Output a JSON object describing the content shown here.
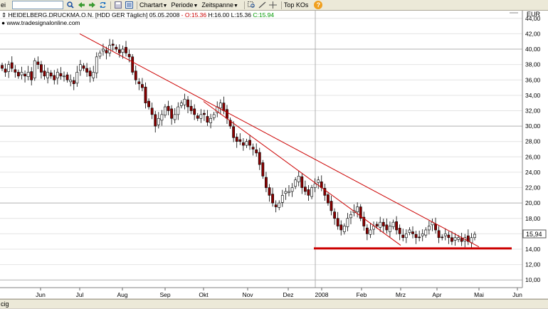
{
  "toolbar": {
    "left_fragment": "ei",
    "search_value": "",
    "menus": [
      {
        "label": "Chartart"
      },
      {
        "label": "Periode"
      },
      {
        "label": "Zeitspanne"
      }
    ],
    "topkos_label": "Top KOs",
    "help_icon": "help-icon"
  },
  "chart": {
    "header_name": "HEIDELBERG.DRUCKMA.O.N.",
    "header_exchange": "[HDD GER",
    "header_period": "Täglich]",
    "header_date": "05.05.2008",
    "header_open": "- O:15.36",
    "header_hl": "H:16.00 L:15.36",
    "header_close": "C:15.94",
    "source": "www.tradesignalonline.com",
    "currency": "EUR",
    "last_price_label": "15,94",
    "colors": {
      "up": "#ffffff",
      "down": "#8b0000",
      "trendline": "#cc0000",
      "support": "#cc0000",
      "open_text": "#cc0000",
      "close_text": "#009900"
    }
  },
  "chart_data": {
    "type": "candlestick",
    "y_axis_unit": "EUR",
    "ylim": [
      9,
      45
    ],
    "y_ticks": [
      "10,00",
      "12,00",
      "14,00",
      "16,00",
      "18,00",
      "20,00",
      "22,00",
      "24,00",
      "26,00",
      "28,00",
      "30,00",
      "32,00",
      "34,00",
      "36,00",
      "38,00",
      "40,00",
      "42,00",
      "44,00"
    ],
    "x_ticks": [
      "Jun",
      "Jul",
      "Aug",
      "Sep",
      "Okt",
      "Nov",
      "Dez",
      "2008",
      "Feb",
      "Mrz",
      "Apr",
      "Mai",
      "Jun"
    ],
    "grid": true,
    "price_path": [
      37.5,
      37.0,
      38.0,
      37.5,
      37.0,
      36.5,
      37.0,
      36.5,
      37.0,
      36.0,
      38.5,
      38.0,
      37.0,
      36.5,
      37.0,
      36.5,
      36.0,
      37.0,
      36.5,
      36.5,
      36.0,
      36.0,
      35.5,
      37.0,
      38.0,
      37.5,
      37.0,
      36.5,
      37.0,
      39.0,
      39.5,
      40.0,
      39.5,
      40.5,
      40.5,
      40.0,
      39.5,
      40.0,
      39.5,
      39.0,
      37.0,
      36.0,
      35.5,
      35.0,
      33.0,
      32.5,
      31.5,
      30.0,
      31.0,
      31.5,
      32.5,
      32.0,
      31.0,
      31.5,
      32.5,
      33.0,
      33.5,
      32.5,
      32.0,
      31.5,
      31.0,
      31.5,
      31.5,
      30.5,
      31.0,
      31.5,
      32.5,
      33.0,
      32.0,
      31.0,
      30.0,
      28.5,
      28.0,
      28.0,
      27.5,
      28.0,
      27.5,
      27.0,
      26.5,
      25.0,
      23.5,
      22.0,
      21.0,
      20.0,
      19.5,
      20.0,
      21.0,
      21.5,
      21.5,
      22.0,
      23.0,
      23.5,
      22.0,
      21.5,
      21.0,
      22.0,
      22.5,
      23.0,
      22.0,
      21.0,
      20.0,
      19.0,
      18.0,
      17.0,
      16.5,
      17.0,
      18.0,
      18.5,
      19.0,
      19.5,
      18.0,
      17.0,
      16.0,
      16.5,
      17.0,
      17.0,
      17.5,
      17.0,
      16.5,
      17.0,
      17.5,
      16.5,
      16.0,
      15.5,
      16.0,
      16.5,
      16.0,
      15.5,
      15.5,
      16.0,
      16.5,
      17.0,
      17.5,
      16.5,
      15.5,
      15.5,
      16.0,
      15.5,
      15.0,
      15.5,
      15.5,
      15.0,
      15.5,
      15.0,
      15.5,
      15.94
    ],
    "trendlines": [
      {
        "from": [
          "Jul",
          42.0
        ],
        "to": [
          "Mai",
          14.3
        ]
      },
      {
        "from": [
          "Okt",
          33.2
        ],
        "to": [
          "Mrz",
          14.5
        ]
      }
    ],
    "support_line": {
      "level": 14.1,
      "from": "Jan 2008",
      "to": "Mai"
    },
    "last_close": 15.94
  },
  "status": {
    "text": "cig"
  }
}
